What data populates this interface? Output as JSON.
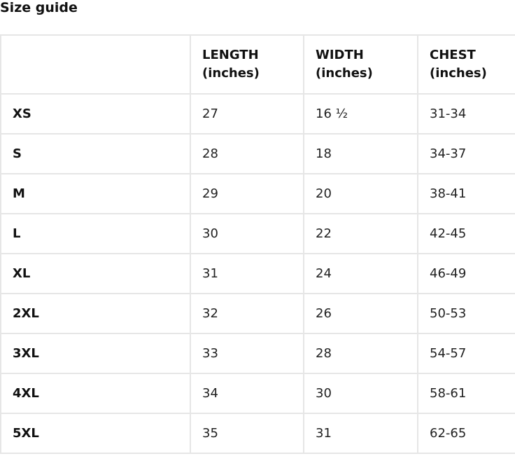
{
  "title": "Size guide",
  "table": {
    "headers": [
      "",
      "LENGTH (inches)",
      "WIDTH (inches)",
      "CHEST (inches)"
    ],
    "rows": [
      [
        "XS",
        "27",
        "16 ½",
        "31-34"
      ],
      [
        "S",
        "28",
        "18",
        "34-37"
      ],
      [
        "M",
        "29",
        "20",
        "38-41"
      ],
      [
        "L",
        "30",
        "22",
        "42-45"
      ],
      [
        "XL",
        "31",
        "24",
        "46-49"
      ],
      [
        "2XL",
        "32",
        "26",
        "50-53"
      ],
      [
        "3XL",
        "33",
        "28",
        "54-57"
      ],
      [
        "4XL",
        "34",
        "30",
        "58-61"
      ],
      [
        "5XL",
        "35",
        "31",
        "62-65"
      ]
    ]
  }
}
